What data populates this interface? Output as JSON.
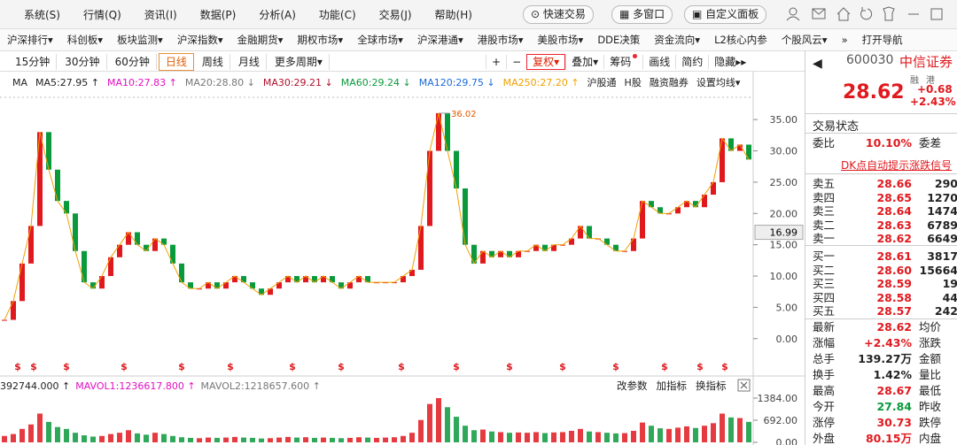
{
  "menu": [
    "系统(S)",
    "行情(Q)",
    "资讯(I)",
    "数据(P)",
    "分析(A)",
    "功能(C)",
    "交易(J)",
    "帮助(H)"
  ],
  "toolbar_buttons": [
    "快速交易",
    "多窗口",
    "自定义面板"
  ],
  "nav": [
    "沪深排行▾",
    "科创板▾",
    "板块监测▾",
    "沪深指数▾",
    "金融期货▾",
    "期权市场▾",
    "全球市场▾",
    "沪深港通▾",
    "港股市场▾",
    "美股市场▾",
    "DDE决策",
    "资金流向▾",
    "L2核心内参",
    "个股风云▾",
    "»",
    "打开导航"
  ],
  "periods": [
    "15分钟",
    "30分钟",
    "60分钟",
    "日线",
    "周线",
    "月线",
    "更多周期▾"
  ],
  "tools": [
    "+",
    "−",
    "复权▾",
    "叠加▾",
    "筹码",
    "画线",
    "简约",
    "隐藏▸▸"
  ],
  "ma_legend": [
    {
      "text": "MA",
      "color": "#222"
    },
    {
      "text": "MA5:27.95 ↑",
      "color": "#222"
    },
    {
      "text": "MA10:27.83 ↑",
      "color": "#e010c0"
    },
    {
      "text": "MA20:28.80 ↓",
      "color": "#777"
    },
    {
      "text": "MA30:29.21 ↓",
      "color": "#b0102a"
    },
    {
      "text": "MA60:29.24 ↓",
      "color": "#0a9a3c"
    },
    {
      "text": "MA120:29.75 ↓",
      "color": "#1a6ad8"
    },
    {
      "text": "MA250:27.20 ↑",
      "color": "#f0a000"
    },
    {
      "text": "沪股通",
      "color": "#222"
    },
    {
      "text": "H股",
      "color": "#222"
    },
    {
      "text": "融资融券",
      "color": "#222"
    },
    {
      "text": "设置均线▾",
      "color": "#222"
    }
  ],
  "vol_legend": [
    {
      "text": "392744.000 ↑",
      "color": "#222"
    },
    {
      "text": "MAVOL1:1236617.800 ↑",
      "color": "#e010c0"
    },
    {
      "text": "MAVOL2:1218657.600 ↑",
      "color": "#777"
    }
  ],
  "vol_buttons": [
    "改参数",
    "加指标",
    "换指标"
  ],
  "dividend_marker": "$",
  "chart_data": [
    {
      "type": "candlestick",
      "up_color": "#e0191e",
      "down_color": "#0a9a3c",
      "line_color": "#f0a000",
      "values": [
        3,
        6,
        12,
        18,
        33,
        27,
        22,
        20,
        14,
        9,
        8,
        10,
        13,
        15,
        17,
        15,
        14,
        16,
        15,
        12,
        9,
        8,
        8,
        9,
        8,
        9,
        10,
        9,
        8,
        7,
        8,
        9,
        10,
        9,
        10,
        9,
        10,
        9,
        8,
        9,
        10,
        9,
        9,
        9,
        9,
        10,
        11,
        18,
        30,
        36.02,
        30,
        24,
        15,
        12,
        14,
        13,
        14,
        13,
        14,
        14,
        15,
        14,
        15,
        15,
        16,
        18,
        16,
        16,
        15,
        14,
        14,
        16,
        22,
        21,
        20,
        20,
        21,
        22,
        21,
        23,
        25,
        32,
        30,
        31,
        28.62
      ],
      "ylim": [
        -3,
        38.7
      ],
      "yticks": [
        {
          "value": 0,
          "label": "0.00"
        },
        {
          "value": 5,
          "label": "5.00"
        },
        {
          "value": 10,
          "label": "10.00"
        },
        {
          "value": 15,
          "label": "15.00"
        },
        {
          "value": 20,
          "label": "20.00"
        },
        {
          "value": 25,
          "label": "25.00"
        },
        {
          "value": 30,
          "label": "30.00"
        },
        {
          "value": 35,
          "label": "35.00"
        }
      ],
      "peak_label": 36.02,
      "cursor_price": 16.99
    },
    {
      "type": "bar",
      "values": [
        200,
        260,
        420,
        560,
        900,
        640,
        480,
        420,
        300,
        220,
        180,
        200,
        260,
        300,
        380,
        280,
        240,
        300,
        260,
        200,
        160,
        140,
        130,
        150,
        140,
        150,
        170,
        150,
        140,
        120,
        130,
        150,
        170,
        150,
        160,
        140,
        150,
        140,
        130,
        140,
        160,
        150,
        140,
        150,
        160,
        200,
        300,
        700,
        1200,
        1384,
        1100,
        800,
        520,
        380,
        400,
        340,
        320,
        300,
        310,
        300,
        320,
        290,
        310,
        320,
        360,
        420,
        340,
        320,
        300,
        280,
        290,
        360,
        620,
        520,
        440,
        420,
        460,
        500,
        450,
        520,
        600,
        900,
        780,
        760,
        640
      ],
      "ylim": [
        0,
        1384
      ],
      "yticks": [
        {
          "value": 0,
          "label": "0.00"
        },
        {
          "value": 692,
          "label": "692.00"
        },
        {
          "value": 1384,
          "label": "1384.00"
        }
      ]
    }
  ],
  "quote": {
    "code": "600030",
    "name": "中信证券",
    "price": "28.62",
    "change": "+0.68",
    "change_pct": "+2.43%",
    "badges": [
      "融",
      "港"
    ],
    "status": "交易状态",
    "weibi_label": "委比",
    "weibi": "10.10%",
    "weicha_label": "委差",
    "signal": "DK点自动提示涨跌信号",
    "book": [
      [
        "卖五",
        "28.66",
        "290"
      ],
      [
        "卖四",
        "28.65",
        "1270"
      ],
      [
        "卖三",
        "28.64",
        "1474"
      ],
      [
        "卖二",
        "28.63",
        "6789"
      ],
      [
        "卖一",
        "28.62",
        "6649"
      ],
      [
        "买一",
        "28.61",
        "3817"
      ],
      [
        "买二",
        "28.60",
        "15664"
      ],
      [
        "买三",
        "28.59",
        "19"
      ],
      [
        "买四",
        "28.58",
        "44"
      ],
      [
        "买五",
        "28.57",
        "242"
      ]
    ],
    "stats": [
      {
        "label": "最新",
        "value": "28.62",
        "color": "red",
        "label2": "均价"
      },
      {
        "label": "涨幅",
        "value": "+2.43%",
        "color": "red",
        "label2": "涨跌"
      },
      {
        "label": "总手",
        "value": "139.27万",
        "color": "black",
        "label2": "金额"
      },
      {
        "label": "换手",
        "value": "1.42%",
        "color": "black",
        "label2": "量比"
      },
      {
        "label": "最高",
        "value": "28.67",
        "color": "red",
        "label2": "最低"
      },
      {
        "label": "今开",
        "value": "27.84",
        "color": "green",
        "label2": "昨收"
      },
      {
        "label": "涨停",
        "value": "30.73",
        "color": "red",
        "label2": "跌停"
      },
      {
        "label": "外盘",
        "value": "80.15万",
        "color": "red",
        "label2": "内盘"
      }
    ]
  }
}
